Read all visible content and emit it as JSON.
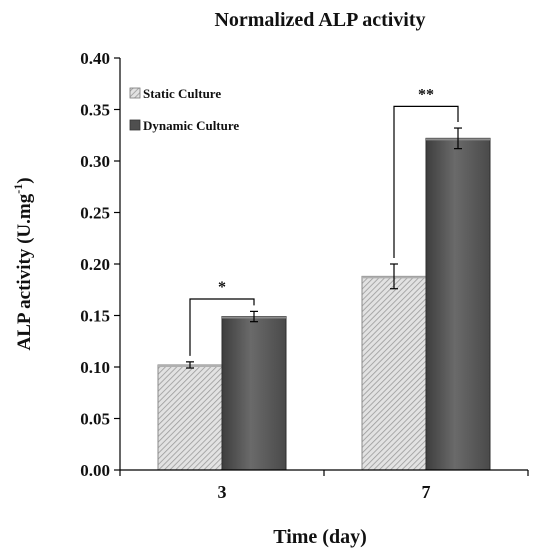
{
  "chart_data": {
    "type": "bar",
    "title": "Normalized ALP activity",
    "xlabel": "Time (day)",
    "ylabel": "ALP activity (U.mg",
    "ylabel_superscript": "-1",
    "ylabel_close": ")",
    "categories": [
      "3",
      "7"
    ],
    "ylim": [
      0,
      0.4
    ],
    "yticks": [
      "0.00",
      "0.05",
      "0.10",
      "0.15",
      "0.20",
      "0.25",
      "0.30",
      "0.35",
      "0.40"
    ],
    "series": [
      {
        "name": "Static Culture",
        "values": [
          0.102,
          0.188
        ],
        "errors": [
          0.003,
          0.012
        ],
        "pattern": "hatched",
        "color": "#cfcfcf"
      },
      {
        "name": "Dynamic Culture",
        "values": [
          0.149,
          0.322
        ],
        "errors": [
          0.005,
          0.01
        ],
        "pattern": "solid",
        "color": "#5a5a5a"
      }
    ],
    "significance": [
      {
        "category": "3",
        "label": "*",
        "bracket_top": 0.166
      },
      {
        "category": "7",
        "label": "**",
        "bracket_top": 0.353
      }
    ],
    "legend_position": "top-left",
    "grid": false
  }
}
